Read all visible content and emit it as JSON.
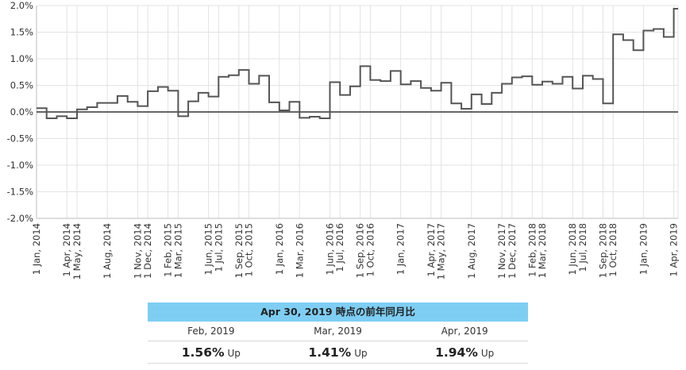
{
  "chart_data": {
    "type": "line",
    "style": "step",
    "y_unit": "%",
    "ylim": [
      -2.0,
      2.0
    ],
    "yticks": [
      "-2.0%",
      "-1.5%",
      "-1.0%",
      "-0.5%",
      "0.0%",
      "0.5%",
      "1.0%",
      "1.5%",
      "2.0%"
    ],
    "ytick_values": [
      -2.0,
      -1.5,
      -1.0,
      -0.5,
      0.0,
      0.5,
      1.0,
      1.5,
      2.0
    ],
    "x_start": "2014-01",
    "x_end": "2019-04",
    "xtick_labels": [
      "1 Jan, 2014",
      "1 Apr, 2014",
      "1 May, 2014",
      "1 Aug, 2014",
      "1 Nov, 2014",
      "1 Dec, 2014",
      "1 Feb, 2015",
      "1 Mar, 2015",
      "1 Jun, 2015",
      "1 Jul, 2015",
      "1 Sep, 2015",
      "1 Oct, 2015",
      "1 Jan, 2016",
      "1 Mar, 2016",
      "1 Jun, 2016",
      "1 Jul, 2016",
      "1 Sep, 2016",
      "1 Oct, 2016",
      "1 Jan, 2017",
      "1 Apr, 2017",
      "1 May, 2017",
      "1 Aug, 2017",
      "1 Nov, 2017",
      "1 Dec, 2017",
      "1 Feb, 2018",
      "1 Mar, 2018",
      "1 Jun, 2018",
      "1 Jul, 2018",
      "1 Sep, 2018",
      "1 Oct, 2018",
      "1 Jan, 2019",
      "1 Apr, 2019"
    ],
    "xtick_months": [
      "2014-01",
      "2014-04",
      "2014-05",
      "2014-08",
      "2014-11",
      "2014-12",
      "2015-02",
      "2015-03",
      "2015-06",
      "2015-07",
      "2015-09",
      "2015-10",
      "2016-01",
      "2016-03",
      "2016-06",
      "2016-07",
      "2016-09",
      "2016-10",
      "2017-01",
      "2017-04",
      "2017-05",
      "2017-08",
      "2017-11",
      "2017-12",
      "2018-02",
      "2018-03",
      "2018-06",
      "2018-07",
      "2018-09",
      "2018-10",
      "2019-01",
      "2019-04"
    ],
    "grid": true,
    "zero_line": true,
    "series": [
      {
        "color": "#555555",
        "x": [
          "2014-01",
          "2014-02",
          "2014-03",
          "2014-04",
          "2014-05",
          "2014-06",
          "2014-07",
          "2014-08",
          "2014-09",
          "2014-10",
          "2014-11",
          "2014-12",
          "2015-01",
          "2015-02",
          "2015-03",
          "2015-04",
          "2015-05",
          "2015-06",
          "2015-07",
          "2015-08",
          "2015-09",
          "2015-10",
          "2015-11",
          "2015-12",
          "2016-01",
          "2016-02",
          "2016-03",
          "2016-04",
          "2016-05",
          "2016-06",
          "2016-07",
          "2016-08",
          "2016-09",
          "2016-10",
          "2016-11",
          "2016-12",
          "2017-01",
          "2017-02",
          "2017-03",
          "2017-04",
          "2017-05",
          "2017-06",
          "2017-07",
          "2017-08",
          "2017-09",
          "2017-10",
          "2017-11",
          "2017-12",
          "2018-01",
          "2018-02",
          "2018-03",
          "2018-04",
          "2018-05",
          "2018-06",
          "2018-07",
          "2018-08",
          "2018-09",
          "2018-10",
          "2018-11",
          "2018-12",
          "2019-01",
          "2019-02",
          "2019-03",
          "2019-04"
        ],
        "values": [
          0.07,
          -0.12,
          -0.08,
          -0.12,
          0.05,
          0.09,
          0.17,
          0.17,
          0.3,
          0.19,
          0.11,
          0.39,
          0.47,
          0.4,
          -0.08,
          0.2,
          0.36,
          0.29,
          0.66,
          0.69,
          0.79,
          0.53,
          0.68,
          0.18,
          0.03,
          0.19,
          -0.11,
          -0.09,
          -0.12,
          0.56,
          0.32,
          0.48,
          0.86,
          0.6,
          0.58,
          0.77,
          0.52,
          0.58,
          0.45,
          0.4,
          0.55,
          0.16,
          0.06,
          0.33,
          0.15,
          0.36,
          0.53,
          0.65,
          0.67,
          0.51,
          0.57,
          0.53,
          0.66,
          0.44,
          0.68,
          0.62,
          0.16,
          1.46,
          1.35,
          1.16,
          1.53,
          1.56,
          1.41,
          1.94
        ]
      }
    ]
  },
  "summary": {
    "title": "Apr 30, 2019 時点の前年同月比",
    "items": [
      {
        "month": "Feb, 2019",
        "value": "1.56%",
        "direction": "Up"
      },
      {
        "month": "Mar, 2019",
        "value": "1.41%",
        "direction": "Up"
      },
      {
        "month": "Apr, 2019",
        "value": "1.94%",
        "direction": "Up"
      }
    ]
  }
}
